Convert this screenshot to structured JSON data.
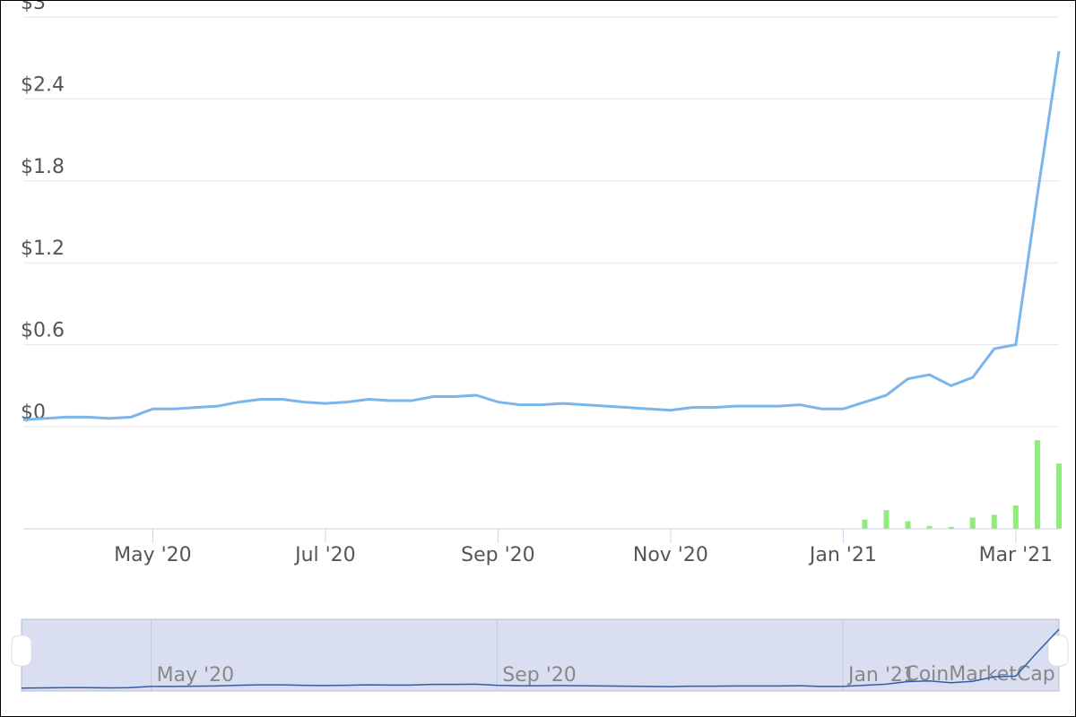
{
  "chart_data": {
    "type": "line",
    "categories": [
      null,
      null,
      null,
      null,
      null,
      null,
      "May '20",
      null,
      null,
      null,
      null,
      null,
      null,
      null,
      "Jul '20",
      null,
      null,
      null,
      null,
      null,
      null,
      null,
      "Sep '20",
      null,
      null,
      null,
      null,
      null,
      null,
      null,
      "Nov '20",
      null,
      null,
      null,
      null,
      null,
      null,
      null,
      "Jan '21",
      null,
      null,
      null,
      null,
      null,
      null,
      null,
      "Mar '21",
      null,
      null
    ],
    "series": [
      {
        "color": "#7cb5ec",
        "values": [
          0.05,
          0.06,
          0.07,
          0.07,
          0.06,
          0.07,
          0.13,
          0.13,
          0.14,
          0.15,
          0.18,
          0.2,
          0.2,
          0.18,
          0.17,
          0.18,
          0.2,
          0.19,
          0.19,
          0.22,
          0.22,
          0.23,
          0.18,
          0.16,
          0.16,
          0.17,
          0.16,
          0.15,
          0.14,
          0.13,
          0.12,
          0.14,
          0.14,
          0.15,
          0.15,
          0.15,
          0.16,
          0.13,
          0.13,
          0.18,
          0.23,
          0.35,
          0.38,
          0.3,
          0.36,
          0.57,
          0.6,
          1.7,
          2.75
        ]
      },
      {
        "type": "bar",
        "axis": "y2",
        "color": "#90ed7d",
        "values": [
          0,
          0,
          0,
          0,
          0,
          0,
          0,
          0,
          0,
          0,
          0,
          0,
          0,
          0,
          0,
          0,
          0,
          0,
          0,
          0,
          0,
          0,
          0,
          0,
          0,
          0,
          0,
          0,
          0,
          0,
          0,
          0,
          0,
          0,
          0,
          0,
          0,
          0,
          0,
          10,
          20,
          8,
          3,
          2,
          12,
          15,
          25,
          95,
          70
        ]
      }
    ],
    "ylim": [
      0,
      3
    ],
    "yticks": [
      {
        "value": 0,
        "label": "$0"
      },
      {
        "value": 0.6,
        "label": "$0.6"
      },
      {
        "value": 1.2,
        "label": "$1.2"
      },
      {
        "value": 1.8,
        "label": "$1.8"
      },
      {
        "value": 2.4,
        "label": "$2.4"
      },
      {
        "value": 3,
        "label": "$3"
      }
    ],
    "y2lim": [
      0,
      100
    ],
    "grid": true,
    "navigator_labels": [
      6,
      22,
      38
    ],
    "watermark": "CoinMarketCap"
  }
}
